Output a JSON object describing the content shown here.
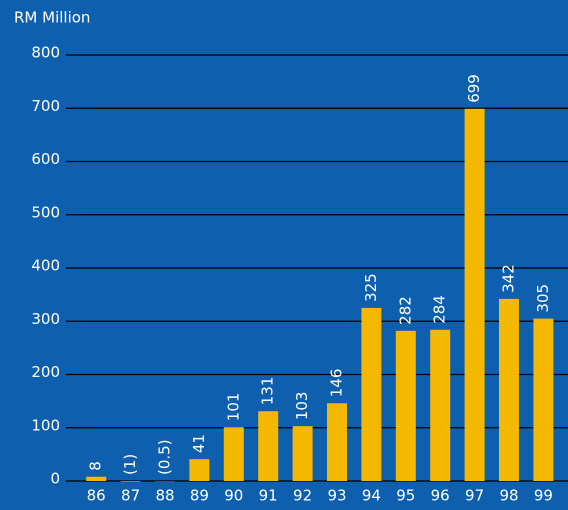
{
  "chart_data": {
    "type": "bar",
    "y_axis_label": "RM Million",
    "categories": [
      "86",
      "87",
      "88",
      "89",
      "90",
      "91",
      "92",
      "93",
      "94",
      "95",
      "96",
      "97",
      "98",
      "99"
    ],
    "values": [
      8,
      -1,
      -0.5,
      41,
      101,
      131,
      103,
      146,
      325,
      282,
      284,
      699,
      342,
      305
    ],
    "value_labels": [
      "8",
      "(1)",
      "(0.5)",
      "41",
      "101",
      "131",
      "103",
      "146",
      "325",
      "282",
      "284",
      "699",
      "342",
      "305"
    ],
    "color": "#f5b800",
    "background": "#0f5faf",
    "ylim": [
      0,
      800
    ],
    "yticks": [
      0,
      100,
      200,
      300,
      400,
      500,
      600,
      700,
      800
    ],
    "grid": true
  }
}
